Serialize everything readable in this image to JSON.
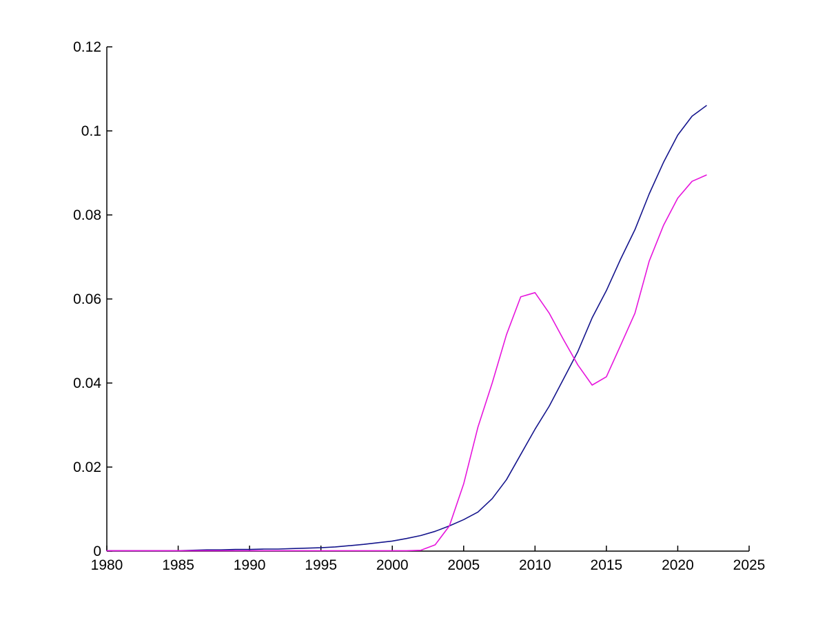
{
  "figure": {
    "background": "#FFFFFF",
    "axis_color": "#000000",
    "tick_label_color": "#000000"
  },
  "chart_data": {
    "type": "line",
    "title": "",
    "xlabel": "",
    "ylabel": "",
    "grid": false,
    "legend": "none",
    "xlim": [
      1980,
      2025
    ],
    "ylim": [
      0,
      0.12
    ],
    "xticks": [
      1980,
      1985,
      1990,
      1995,
      2000,
      2005,
      2010,
      2015,
      2020,
      2025
    ],
    "xtick_labels": [
      "1980",
      "1985",
      "1990",
      "1995",
      "2000",
      "2005",
      "2010",
      "2015",
      "2020",
      "2025"
    ],
    "yticks": [
      0,
      0.02,
      0.04,
      0.06,
      0.08,
      0.1,
      0.12
    ],
    "ytick_labels": [
      "0",
      "0.02",
      "0.04",
      "0.06",
      "0.08",
      "0.1",
      "0.12"
    ],
    "x": [
      1980,
      1981,
      1982,
      1983,
      1984,
      1985,
      1986,
      1987,
      1988,
      1989,
      1990,
      1991,
      1992,
      1993,
      1994,
      1995,
      1996,
      1997,
      1998,
      1999,
      2000,
      2001,
      2002,
      2003,
      2004,
      2005,
      2006,
      2007,
      2008,
      2009,
      2010,
      2011,
      2012,
      2013,
      2014,
      2015,
      2016,
      2017,
      2018,
      2019,
      2020,
      2021,
      2022
    ],
    "series": [
      {
        "name": "dark-blue-line",
        "color": "#14148C",
        "line_width": 1.6,
        "values": [
          0.0001,
          0.0001,
          0.0001,
          0.0001,
          0.0001,
          0.0001,
          0.0002,
          0.0003,
          0.0003,
          0.0004,
          0.0004,
          0.0005,
          0.0005,
          0.0006,
          0.0007,
          0.0008,
          0.001,
          0.0013,
          0.0016,
          0.002,
          0.0024,
          0.003,
          0.0037,
          0.0047,
          0.006,
          0.0075,
          0.0093,
          0.0125,
          0.017,
          0.023,
          0.029,
          0.0345,
          0.041,
          0.0475,
          0.0555,
          0.062,
          0.0695,
          0.0765,
          0.085,
          0.0925,
          0.099,
          0.1035,
          0.106
        ]
      },
      {
        "name": "magenta-line",
        "color": "#E614DC",
        "line_width": 1.6,
        "values": [
          0.0001,
          0.0001,
          0.0001,
          0.0001,
          0.0001,
          0.0001,
          0.0001,
          0.0001,
          0.0001,
          0.0001,
          0.0001,
          0.0001,
          0.0001,
          0.0001,
          0.0001,
          0.0001,
          0.0001,
          0.0001,
          0.0001,
          0.0001,
          0.0001,
          0.0001,
          0.0002,
          0.0015,
          0.006,
          0.016,
          0.0295,
          0.04,
          0.0515,
          0.0605,
          0.0615,
          0.0566,
          0.0503,
          0.0443,
          0.0395,
          0.0415,
          0.049,
          0.0566,
          0.069,
          0.0775,
          0.084,
          0.088,
          0.0895
        ]
      }
    ]
  }
}
